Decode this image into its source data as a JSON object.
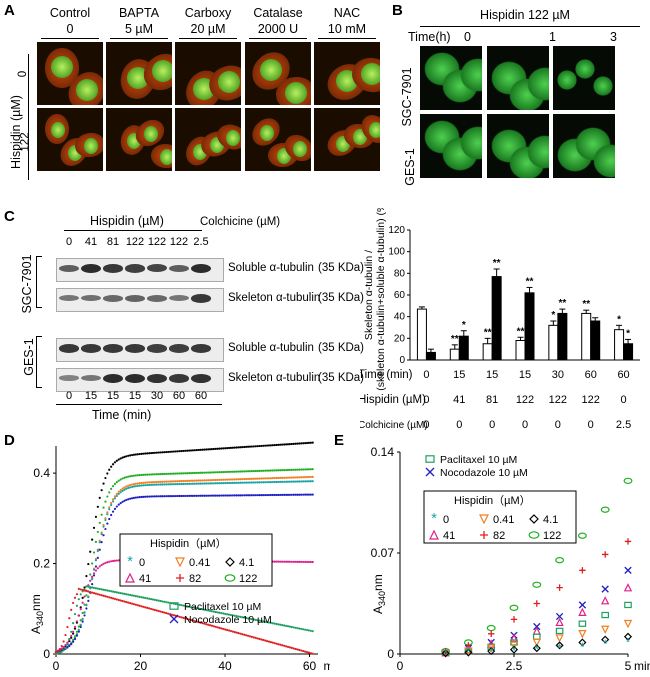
{
  "panels": {
    "A": "A",
    "B": "B",
    "C": "C",
    "D": "D",
    "E": "E"
  },
  "panelA": {
    "treatments": [
      {
        "name": "Control",
        "dose": "0"
      },
      {
        "name": "BAPTA",
        "dose": "5 µM"
      },
      {
        "name": "Carboxy",
        "dose": "20 µM"
      },
      {
        "name": "Catalase",
        "dose": "2000 U"
      },
      {
        "name": "NAC",
        "dose": "10 mM"
      }
    ],
    "row_axis": "Hispidin (µM)",
    "rows": [
      "0",
      "122"
    ]
  },
  "panelB": {
    "title": "Hispidin 122 µM",
    "time_label": "Time(h)",
    "times": [
      "0",
      "1",
      "3"
    ],
    "rows": [
      "SGC-7901",
      "GES-1"
    ]
  },
  "panelC": {
    "header": "Hispidin (µM)",
    "colchicine_header": "Colchicine (µM)",
    "doses": [
      "0",
      "41",
      "81",
      "122",
      "122",
      "122",
      "2.5"
    ],
    "times": [
      "0",
      "15",
      "15",
      "15",
      "30",
      "60",
      "60"
    ],
    "time_axis": "Time (min)",
    "cell_lines": [
      "SGC-7901",
      "GES-1"
    ],
    "blot_labels": [
      "Soluble α-tubulin",
      "Skeleton α-tubulin",
      "Soluble α-tubulin",
      "Skeleton α-tubulin"
    ],
    "kda": "(35 KDa)"
  },
  "chart_data": [
    {
      "type": "bar",
      "panel": "C",
      "ylabel": "Skeleton α-tubulin / (skeleton α-tubulin+soluble α-tubulin) (%)",
      "yticks": [
        "0",
        "20",
        "40",
        "60",
        "80",
        "100",
        "120"
      ],
      "ylim": [
        0,
        120
      ],
      "table": {
        "row_labels": [
          "Time (min)",
          "Hispidin (µM)",
          "Colchicine (µM)"
        ],
        "time": [
          "0",
          "15",
          "15",
          "15",
          "30",
          "60",
          "60"
        ],
        "hispidin": [
          "0",
          "41",
          "81",
          "122",
          "122",
          "122",
          "0"
        ],
        "colchicine": [
          "0",
          "0",
          "0",
          "0",
          "0",
          "0",
          "2.5"
        ]
      },
      "series": [
        {
          "values": [
            47,
            10,
            15,
            18,
            32,
            43,
            28
          ],
          "err": [
            2,
            4,
            5,
            3,
            4,
            3,
            4
          ]
        },
        {
          "values": [
            7,
            22,
            77,
            62,
            43,
            36,
            15
          ],
          "err": [
            3,
            5,
            7,
            5,
            4,
            3,
            4
          ]
        }
      ],
      "significance": [
        {
          "index": 1,
          "white": "**",
          "black": "*"
        },
        {
          "index": 2,
          "white": "**",
          "black": "**"
        },
        {
          "index": 3,
          "white": "**",
          "black": "**"
        },
        {
          "index": 4,
          "white": "*",
          "black": "**"
        },
        {
          "index": 5,
          "white": "**",
          "black": ""
        },
        {
          "index": 6,
          "white": "*",
          "black": "*"
        }
      ]
    },
    {
      "type": "scatter",
      "panel": "D",
      "ylabel_main": "A",
      "ylabel_sub": "340",
      "ylabel_unit": "nm",
      "xunit": "min",
      "xticks": [
        "0",
        "20",
        "40",
        "60"
      ],
      "yticks": [
        "0",
        "0.2",
        "0.4"
      ],
      "xlim": [
        0,
        62
      ],
      "ylim": [
        0,
        0.46
      ],
      "legend_title": "Hispidin（µM）",
      "legend_entries": [
        {
          "marker": "*",
          "label": "0",
          "color": "#1aa3a3"
        },
        {
          "marker": "▽",
          "label": "0.41",
          "color": "#f08020"
        },
        {
          "marker": "◇",
          "label": "4.1",
          "color": "#000000"
        },
        {
          "marker": "△",
          "label": "41",
          "color": "#e0208a"
        },
        {
          "marker": "+",
          "label": "82",
          "color": "#e02020"
        },
        {
          "marker": "○",
          "label": "122",
          "color": "#20b020"
        }
      ],
      "extra_legend": [
        {
          "marker": "□",
          "label": "Paclitaxel 10 µM",
          "color": "#20a060"
        },
        {
          "marker": "×",
          "label": "Nocodazole 10 µM",
          "color": "#2020c0"
        }
      ],
      "curves": [
        {
          "color": "#000000",
          "plateau": 0.44,
          "mid": 8,
          "k": 0.55,
          "slope": 0.0006
        },
        {
          "color": "#20b020",
          "plateau": 0.395,
          "mid": 8.5,
          "k": 0.55,
          "slope": 0.0003
        },
        {
          "color": "#f08020",
          "plateau": 0.378,
          "mid": 9,
          "k": 0.5,
          "slope": 0.0003
        },
        {
          "color": "#1aa3a3",
          "plateau": 0.373,
          "mid": 9,
          "k": 0.5,
          "slope": 0.0002
        },
        {
          "color": "#2020c0",
          "plateau": 0.348,
          "mid": 9,
          "k": 0.5,
          "slope": 0.0001
        },
        {
          "color": "#e0208a",
          "plateau": 0.208,
          "mid": 6,
          "k": 0.6,
          "slope": -0.0001
        },
        {
          "color": "#20a060",
          "peak": 0.15,
          "peak_t": 7,
          "end": 0.05,
          "kind": "decay"
        },
        {
          "color": "#e02020",
          "peak": 0.145,
          "peak_t": 5,
          "end": 0.0,
          "kind": "decay"
        }
      ]
    },
    {
      "type": "scatter",
      "panel": "E",
      "ylabel_main": "A",
      "ylabel_sub": "340",
      "ylabel_unit": "nm",
      "xunit": "min",
      "xticks": [
        "0",
        "2.5",
        "5"
      ],
      "yticks": [
        "0",
        "0.07",
        "0.14"
      ],
      "xlim": [
        0,
        5
      ],
      "ylim": [
        0,
        0.14
      ],
      "legend_title": "Hispidin（µM）",
      "legend_entries": [
        {
          "marker": "*",
          "label": "0",
          "color": "#1aa3a3"
        },
        {
          "marker": "▽",
          "label": "0.41",
          "color": "#f08020"
        },
        {
          "marker": "◇",
          "label": "4.1",
          "color": "#000000"
        },
        {
          "marker": "△",
          "label": "41",
          "color": "#e0208a"
        },
        {
          "marker": "+",
          "label": "82",
          "color": "#e02020"
        },
        {
          "marker": "○",
          "label": "122",
          "color": "#20b020"
        }
      ],
      "extra_legend": [
        {
          "marker": "□",
          "label": "Paclitaxel 10 µM",
          "color": "#20a060"
        },
        {
          "marker": "×",
          "label": "Nocodazole 10 µM",
          "color": "#2020c0"
        }
      ],
      "x": [
        1,
        1.5,
        2,
        2.5,
        3,
        3.5,
        4,
        4.5,
        5
      ],
      "series": [
        {
          "color": "#20b020",
          "values": [
            0.002,
            0.008,
            0.018,
            0.032,
            0.048,
            0.065,
            0.082,
            0.1,
            0.12
          ]
        },
        {
          "color": "#e02020",
          "values": [
            0.002,
            0.006,
            0.014,
            0.024,
            0.035,
            0.046,
            0.058,
            0.069,
            0.078
          ]
        },
        {
          "color": "#2020c0",
          "values": [
            0.001,
            0.004,
            0.008,
            0.013,
            0.019,
            0.026,
            0.034,
            0.045,
            0.058
          ]
        },
        {
          "color": "#e0208a",
          "values": [
            0.001,
            0.003,
            0.007,
            0.011,
            0.016,
            0.022,
            0.029,
            0.037,
            0.046
          ]
        },
        {
          "color": "#20a060",
          "values": [
            0.001,
            0.002,
            0.005,
            0.008,
            0.012,
            0.016,
            0.021,
            0.027,
            0.034
          ]
        },
        {
          "color": "#f08020",
          "values": [
            0.0005,
            0.002,
            0.004,
            0.006,
            0.008,
            0.011,
            0.014,
            0.017,
            0.021
          ]
        },
        {
          "color": "#000000",
          "values": [
            0.0005,
            0.001,
            0.002,
            0.003,
            0.004,
            0.006,
            0.008,
            0.01,
            0.012
          ]
        },
        {
          "color": "#1aa3a3",
          "values": [
            0.0003,
            0.001,
            0.0015,
            0.002,
            0.003,
            0.004,
            0.005,
            0.007,
            0.008
          ]
        }
      ]
    }
  ]
}
